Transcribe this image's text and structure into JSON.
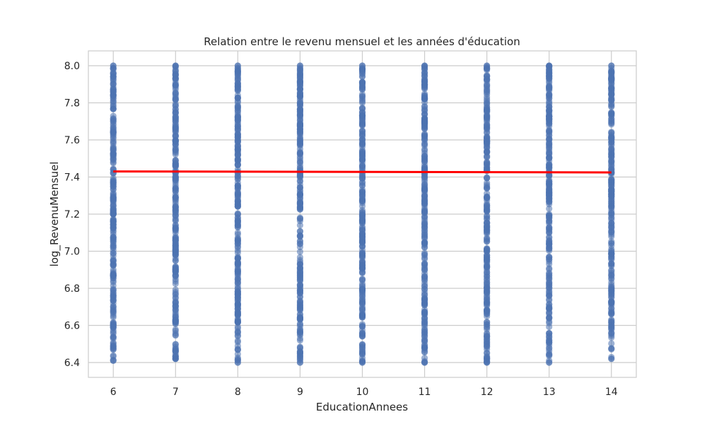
{
  "chart_data": {
    "type": "scatter",
    "title": "Relation entre le revenu mensuel et les années d'éducation",
    "xlabel": "EducationAnnees",
    "ylabel": "log_RevenuMensuel",
    "x_ticks": [
      6,
      7,
      8,
      9,
      10,
      11,
      12,
      13,
      14
    ],
    "y_ticks": [
      "6.4",
      "6.6",
      "6.8",
      "7.0",
      "7.2",
      "7.4",
      "7.6",
      "7.8",
      "8.0"
    ],
    "xlim": [
      5.6,
      14.4
    ],
    "ylim": [
      6.32,
      8.08
    ],
    "grid": true,
    "point_color": "#4c72b0",
    "series": [
      {
        "x": 6,
        "y_range": [
          6.41,
          8.0
        ]
      },
      {
        "x": 7,
        "y_range": [
          6.42,
          8.0
        ]
      },
      {
        "x": 8,
        "y_range": [
          6.4,
          8.0
        ]
      },
      {
        "x": 9,
        "y_range": [
          6.4,
          8.0
        ]
      },
      {
        "x": 10,
        "y_range": [
          6.4,
          8.0
        ]
      },
      {
        "x": 11,
        "y_range": [
          6.4,
          8.0
        ]
      },
      {
        "x": 12,
        "y_range": [
          6.4,
          8.0
        ]
      },
      {
        "x": 13,
        "y_range": [
          6.4,
          8.0
        ]
      },
      {
        "x": 14,
        "y_range": [
          6.42,
          8.0
        ]
      }
    ],
    "regression_line": {
      "color": "#ff0000",
      "x": [
        6,
        14
      ],
      "y": [
        7.43,
        7.425
      ]
    }
  }
}
